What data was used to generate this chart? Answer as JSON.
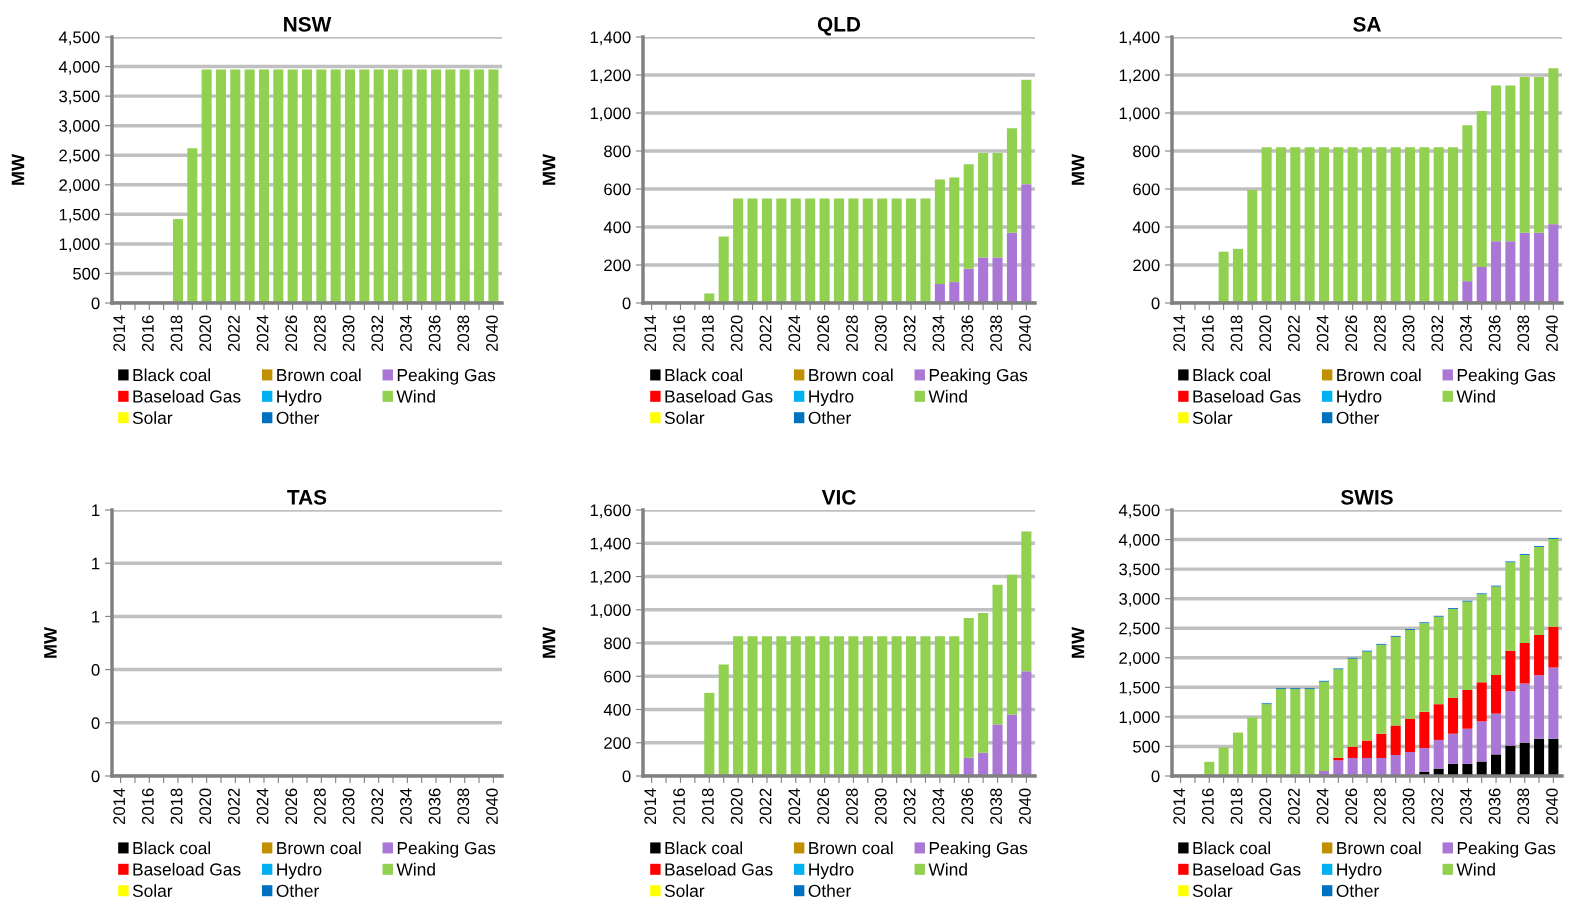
{
  "chart_data": [
    {
      "type": "bar",
      "stacked": true,
      "title": "NSW",
      "ylabel": "MW",
      "grid": "y",
      "legend": "bottom",
      "categories": [
        "2014",
        null,
        "2016",
        null,
        "2018",
        null,
        "2020",
        null,
        "2022",
        null,
        "2024",
        null,
        "2026",
        null,
        "2028",
        null,
        "2030",
        null,
        "2032",
        null,
        "2034",
        null,
        "2036",
        null,
        "2038",
        null,
        "2040"
      ],
      "ylim": [
        0,
        4500
      ],
      "yticks": [
        0,
        {
          "value": 500,
          "label": "500"
        },
        {
          "value": 1000,
          "label": "1,000"
        },
        {
          "value": 1500,
          "label": "1,500"
        },
        {
          "value": 2000,
          "label": "2,000"
        },
        {
          "value": 2500,
          "label": "2,500"
        },
        {
          "value": 3000,
          "label": "3,000"
        },
        {
          "value": 3500,
          "label": "3,500"
        },
        {
          "value": 4000,
          "label": "4,000"
        },
        {
          "value": 4500,
          "label": "4,500"
        }
      ],
      "series": [
        {
          "name": "Black coal",
          "color": "#000000",
          "values": [
            0,
            0,
            0,
            0,
            0,
            0,
            0,
            0,
            0,
            0,
            0,
            0,
            0,
            0,
            0,
            0,
            0,
            0,
            0,
            0,
            0,
            0,
            0,
            0,
            0,
            0,
            0
          ]
        },
        {
          "name": "Brown coal",
          "color": "#c09000",
          "values": [
            0,
            0,
            0,
            0,
            0,
            0,
            0,
            0,
            0,
            0,
            0,
            0,
            0,
            0,
            0,
            0,
            0,
            0,
            0,
            0,
            0,
            0,
            0,
            0,
            0,
            0,
            0
          ]
        },
        {
          "name": "Peaking Gas",
          "color": "#aa77d6",
          "values": [
            0,
            0,
            0,
            0,
            0,
            0,
            0,
            0,
            0,
            0,
            0,
            0,
            0,
            0,
            0,
            0,
            0,
            0,
            0,
            0,
            0,
            0,
            0,
            0,
            0,
            0,
            0
          ]
        },
        {
          "name": "Baseload Gas",
          "color": "#ff0000",
          "values": [
            0,
            0,
            0,
            0,
            0,
            0,
            0,
            0,
            0,
            0,
            0,
            0,
            0,
            0,
            0,
            0,
            0,
            0,
            0,
            0,
            0,
            0,
            0,
            0,
            0,
            0,
            0
          ]
        },
        {
          "name": "Hydro",
          "color": "#00b0f0",
          "values": [
            0,
            0,
            0,
            0,
            0,
            0,
            0,
            0,
            0,
            0,
            0,
            0,
            0,
            0,
            0,
            0,
            0,
            0,
            0,
            0,
            0,
            0,
            0,
            0,
            0,
            0,
            0
          ]
        },
        {
          "name": "Wind",
          "color": "#92d050",
          "values": [
            0,
            0,
            0,
            0,
            1420,
            2620,
            3950,
            3950,
            3950,
            3950,
            3950,
            3950,
            3950,
            3950,
            3950,
            3950,
            3950,
            3950,
            3950,
            3950,
            3950,
            3950,
            3950,
            3950,
            3950,
            3950,
            3950
          ]
        },
        {
          "name": "Solar",
          "color": "#ffff00",
          "values": [
            0,
            0,
            0,
            0,
            0,
            0,
            0,
            0,
            0,
            0,
            0,
            0,
            0,
            0,
            0,
            0,
            0,
            0,
            0,
            0,
            0,
            0,
            0,
            0,
            0,
            0,
            0
          ]
        },
        {
          "name": "Other",
          "color": "#0070c0",
          "values": [
            0,
            0,
            0,
            0,
            0,
            0,
            0,
            0,
            0,
            0,
            0,
            0,
            0,
            0,
            0,
            0,
            0,
            0,
            0,
            0,
            0,
            0,
            0,
            0,
            0,
            0,
            0
          ]
        }
      ]
    },
    {
      "type": "bar",
      "stacked": true,
      "title": "QLD",
      "ylabel": "MW",
      "grid": "y",
      "legend": "bottom",
      "categories": [
        "2014",
        null,
        "2016",
        null,
        "2018",
        null,
        "2020",
        null,
        "2022",
        null,
        "2024",
        null,
        "2026",
        null,
        "2028",
        null,
        "2030",
        null,
        "2032",
        null,
        "2034",
        null,
        "2036",
        null,
        "2038",
        null,
        "2040"
      ],
      "ylim": [
        0,
        1400
      ],
      "yticks": [
        0,
        200,
        400,
        600,
        800,
        {
          "value": 1000,
          "label": "1,000"
        },
        {
          "value": 1200,
          "label": "1,200"
        },
        {
          "value": 1400,
          "label": "1,400"
        }
      ],
      "series": [
        {
          "name": "Black coal",
          "color": "#000000",
          "values": [
            0,
            0,
            0,
            0,
            0,
            0,
            0,
            0,
            0,
            0,
            0,
            0,
            0,
            0,
            0,
            0,
            0,
            0,
            0,
            0,
            0,
            0,
            0,
            0,
            0,
            0,
            0
          ]
        },
        {
          "name": "Brown coal",
          "color": "#c09000",
          "values": [
            0,
            0,
            0,
            0,
            0,
            0,
            0,
            0,
            0,
            0,
            0,
            0,
            0,
            0,
            0,
            0,
            0,
            0,
            0,
            0,
            0,
            0,
            0,
            0,
            0,
            0,
            0
          ]
        },
        {
          "name": "Peaking Gas",
          "color": "#aa77d6",
          "values": [
            0,
            0,
            0,
            0,
            0,
            0,
            0,
            0,
            0,
            0,
            0,
            0,
            0,
            0,
            0,
            0,
            0,
            0,
            0,
            0,
            100,
            110,
            180,
            240,
            240,
            370,
            625
          ]
        },
        {
          "name": "Baseload Gas",
          "color": "#ff0000",
          "values": [
            0,
            0,
            0,
            0,
            0,
            0,
            0,
            0,
            0,
            0,
            0,
            0,
            0,
            0,
            0,
            0,
            0,
            0,
            0,
            0,
            0,
            0,
            0,
            0,
            0,
            0,
            0
          ]
        },
        {
          "name": "Hydro",
          "color": "#00b0f0",
          "values": [
            0,
            0,
            0,
            0,
            0,
            0,
            0,
            0,
            0,
            0,
            0,
            0,
            0,
            0,
            0,
            0,
            0,
            0,
            0,
            0,
            0,
            0,
            0,
            0,
            0,
            0,
            0
          ]
        },
        {
          "name": "Wind",
          "color": "#92d050",
          "values": [
            0,
            0,
            0,
            0,
            50,
            350,
            550,
            550,
            550,
            550,
            550,
            550,
            550,
            550,
            550,
            550,
            550,
            550,
            550,
            550,
            550,
            550,
            550,
            550,
            550,
            550,
            550
          ]
        },
        {
          "name": "Solar",
          "color": "#ffff00",
          "values": [
            0,
            0,
            0,
            0,
            0,
            0,
            0,
            0,
            0,
            0,
            0,
            0,
            0,
            0,
            0,
            0,
            0,
            0,
            0,
            0,
            0,
            0,
            0,
            0,
            0,
            0,
            0
          ]
        },
        {
          "name": "Other",
          "color": "#0070c0",
          "values": [
            0,
            0,
            0,
            0,
            0,
            0,
            0,
            0,
            0,
            0,
            0,
            0,
            0,
            0,
            0,
            0,
            0,
            0,
            0,
            0,
            0,
            0,
            0,
            0,
            0,
            0,
            0
          ]
        }
      ]
    },
    {
      "type": "bar",
      "stacked": true,
      "title": "SA",
      "ylabel": "MW",
      "grid": "y",
      "legend": "bottom",
      "categories": [
        "2014",
        null,
        "2016",
        null,
        "2018",
        null,
        "2020",
        null,
        "2022",
        null,
        "2024",
        null,
        "2026",
        null,
        "2028",
        null,
        "2030",
        null,
        "2032",
        null,
        "2034",
        null,
        "2036",
        null,
        "2038",
        null,
        "2040"
      ],
      "ylim": [
        0,
        1400
      ],
      "yticks": [
        0,
        200,
        400,
        600,
        800,
        {
          "value": 1000,
          "label": "1,000"
        },
        {
          "value": 1200,
          "label": "1,200"
        },
        {
          "value": 1400,
          "label": "1,400"
        }
      ],
      "series": [
        {
          "name": "Black coal",
          "color": "#000000",
          "values": [
            0,
            0,
            0,
            0,
            0,
            0,
            0,
            0,
            0,
            0,
            0,
            0,
            0,
            0,
            0,
            0,
            0,
            0,
            0,
            0,
            0,
            0,
            0,
            0,
            0,
            0,
            0
          ]
        },
        {
          "name": "Brown coal",
          "color": "#c09000",
          "values": [
            0,
            0,
            0,
            0,
            0,
            0,
            0,
            0,
            0,
            0,
            0,
            0,
            0,
            0,
            0,
            0,
            0,
            0,
            0,
            0,
            0,
            0,
            0,
            0,
            0,
            0,
            0
          ]
        },
        {
          "name": "Peaking Gas",
          "color": "#aa77d6",
          "values": [
            0,
            0,
            0,
            0,
            0,
            0,
            0,
            0,
            0,
            0,
            0,
            0,
            0,
            0,
            0,
            0,
            0,
            0,
            0,
            0,
            115,
            190,
            325,
            325,
            370,
            370,
            415
          ]
        },
        {
          "name": "Baseload Gas",
          "color": "#ff0000",
          "values": [
            0,
            0,
            0,
            0,
            0,
            0,
            0,
            0,
            0,
            0,
            0,
            0,
            0,
            0,
            0,
            0,
            0,
            0,
            0,
            0,
            0,
            0,
            0,
            0,
            0,
            0,
            0
          ]
        },
        {
          "name": "Hydro",
          "color": "#00b0f0",
          "values": [
            0,
            0,
            0,
            0,
            0,
            0,
            0,
            0,
            0,
            0,
            0,
            0,
            0,
            0,
            0,
            0,
            0,
            0,
            0,
            0,
            0,
            0,
            0,
            0,
            0,
            0,
            0
          ]
        },
        {
          "name": "Wind",
          "color": "#92d050",
          "values": [
            0,
            0,
            0,
            270,
            285,
            595,
            820,
            820,
            820,
            820,
            820,
            820,
            820,
            820,
            820,
            820,
            820,
            820,
            820,
            820,
            820,
            820,
            820,
            820,
            820,
            820,
            820
          ]
        },
        {
          "name": "Solar",
          "color": "#ffff00",
          "values": [
            0,
            0,
            0,
            0,
            0,
            0,
            0,
            0,
            0,
            0,
            0,
            0,
            0,
            0,
            0,
            0,
            0,
            0,
            0,
            0,
            0,
            0,
            0,
            0,
            0,
            0,
            0
          ]
        },
        {
          "name": "Other",
          "color": "#0070c0",
          "values": [
            0,
            0,
            0,
            0,
            0,
            0,
            0,
            0,
            0,
            0,
            0,
            0,
            0,
            0,
            0,
            0,
            0,
            0,
            0,
            0,
            0,
            0,
            0,
            0,
            0,
            0,
            0
          ]
        }
      ]
    },
    {
      "type": "bar",
      "stacked": true,
      "title": "TAS",
      "ylabel": "MW",
      "grid": "y",
      "legend": "bottom",
      "categories": [
        "2014",
        null,
        "2016",
        null,
        "2018",
        null,
        "2020",
        null,
        "2022",
        null,
        "2024",
        null,
        "2026",
        null,
        "2028",
        null,
        "2030",
        null,
        "2032",
        null,
        "2034",
        null,
        "2036",
        null,
        "2038",
        null,
        "2040"
      ],
      "ylim": [
        0,
        1
      ],
      "yticks": [
        0,
        {
          "value": 0.2,
          "label": "0"
        },
        {
          "value": 0.4,
          "label": "0"
        },
        {
          "value": 0.6,
          "label": "1"
        },
        {
          "value": 0.8,
          "label": "1"
        },
        1
      ],
      "series": [
        {
          "name": "Black coal",
          "color": "#000000",
          "values": [
            0,
            0,
            0,
            0,
            0,
            0,
            0,
            0,
            0,
            0,
            0,
            0,
            0,
            0,
            0,
            0,
            0,
            0,
            0,
            0,
            0,
            0,
            0,
            0,
            0,
            0,
            0
          ]
        },
        {
          "name": "Brown coal",
          "color": "#c09000",
          "values": [
            0,
            0,
            0,
            0,
            0,
            0,
            0,
            0,
            0,
            0,
            0,
            0,
            0,
            0,
            0,
            0,
            0,
            0,
            0,
            0,
            0,
            0,
            0,
            0,
            0,
            0,
            0
          ]
        },
        {
          "name": "Peaking Gas",
          "color": "#aa77d6",
          "values": [
            0,
            0,
            0,
            0,
            0,
            0,
            0,
            0,
            0,
            0,
            0,
            0,
            0,
            0,
            0,
            0,
            0,
            0,
            0,
            0,
            0,
            0,
            0,
            0,
            0,
            0,
            0
          ]
        },
        {
          "name": "Baseload Gas",
          "color": "#ff0000",
          "values": [
            0,
            0,
            0,
            0,
            0,
            0,
            0,
            0,
            0,
            0,
            0,
            0,
            0,
            0,
            0,
            0,
            0,
            0,
            0,
            0,
            0,
            0,
            0,
            0,
            0,
            0,
            0
          ]
        },
        {
          "name": "Hydro",
          "color": "#00b0f0",
          "values": [
            0,
            0,
            0,
            0,
            0,
            0,
            0,
            0,
            0,
            0,
            0,
            0,
            0,
            0,
            0,
            0,
            0,
            0,
            0,
            0,
            0,
            0,
            0,
            0,
            0,
            0,
            0
          ]
        },
        {
          "name": "Wind",
          "color": "#92d050",
          "values": [
            0,
            0,
            0,
            0,
            0,
            0,
            0,
            0,
            0,
            0,
            0,
            0,
            0,
            0,
            0,
            0,
            0,
            0,
            0,
            0,
            0,
            0,
            0,
            0,
            0,
            0,
            0
          ]
        },
        {
          "name": "Solar",
          "color": "#ffff00",
          "values": [
            0,
            0,
            0,
            0,
            0,
            0,
            0,
            0,
            0,
            0,
            0,
            0,
            0,
            0,
            0,
            0,
            0,
            0,
            0,
            0,
            0,
            0,
            0,
            0,
            0,
            0,
            0
          ]
        },
        {
          "name": "Other",
          "color": "#0070c0",
          "values": [
            0,
            0,
            0,
            0,
            0,
            0,
            0,
            0,
            0,
            0,
            0,
            0,
            0,
            0,
            0,
            0,
            0,
            0,
            0,
            0,
            0,
            0,
            0,
            0,
            0,
            0,
            0
          ]
        }
      ]
    },
    {
      "type": "bar",
      "stacked": true,
      "title": "VIC",
      "ylabel": "MW",
      "grid": "y",
      "legend": "bottom",
      "categories": [
        "2014",
        null,
        "2016",
        null,
        "2018",
        null,
        "2020",
        null,
        "2022",
        null,
        "2024",
        null,
        "2026",
        null,
        "2028",
        null,
        "2030",
        null,
        "2032",
        null,
        "2034",
        null,
        "2036",
        null,
        "2038",
        null,
        "2040"
      ],
      "ylim": [
        0,
        1600
      ],
      "yticks": [
        0,
        200,
        400,
        600,
        800,
        {
          "value": 1000,
          "label": "1,000"
        },
        {
          "value": 1200,
          "label": "1,200"
        },
        {
          "value": 1400,
          "label": "1,400"
        },
        {
          "value": 1600,
          "label": "1,600"
        }
      ],
      "series": [
        {
          "name": "Black coal",
          "color": "#000000",
          "values": [
            0,
            0,
            0,
            0,
            0,
            0,
            0,
            0,
            0,
            0,
            0,
            0,
            0,
            0,
            0,
            0,
            0,
            0,
            0,
            0,
            0,
            0,
            0,
            0,
            0,
            0,
            0
          ]
        },
        {
          "name": "Brown coal",
          "color": "#c09000",
          "values": [
            0,
            0,
            0,
            0,
            0,
            0,
            0,
            0,
            0,
            0,
            0,
            0,
            0,
            0,
            0,
            0,
            0,
            0,
            0,
            0,
            0,
            0,
            0,
            0,
            0,
            0,
            0
          ]
        },
        {
          "name": "Peaking Gas",
          "color": "#aa77d6",
          "values": [
            0,
            0,
            0,
            0,
            0,
            0,
            0,
            0,
            0,
            0,
            0,
            0,
            0,
            0,
            0,
            0,
            0,
            0,
            0,
            0,
            0,
            0,
            110,
            140,
            310,
            370,
            630
          ]
        },
        {
          "name": "Baseload Gas",
          "color": "#ff0000",
          "values": [
            0,
            0,
            0,
            0,
            0,
            0,
            0,
            0,
            0,
            0,
            0,
            0,
            0,
            0,
            0,
            0,
            0,
            0,
            0,
            0,
            0,
            0,
            0,
            0,
            0,
            0,
            0
          ]
        },
        {
          "name": "Hydro",
          "color": "#00b0f0",
          "values": [
            0,
            0,
            0,
            0,
            0,
            0,
            0,
            0,
            0,
            0,
            0,
            0,
            0,
            0,
            0,
            0,
            0,
            0,
            0,
            0,
            0,
            0,
            0,
            0,
            0,
            0,
            0
          ]
        },
        {
          "name": "Wind",
          "color": "#92d050",
          "values": [
            0,
            0,
            0,
            0,
            500,
            670,
            840,
            840,
            840,
            840,
            840,
            840,
            840,
            840,
            840,
            840,
            840,
            840,
            840,
            840,
            840,
            840,
            840,
            840,
            840,
            840,
            840
          ]
        },
        {
          "name": "Solar",
          "color": "#ffff00",
          "values": [
            0,
            0,
            0,
            0,
            0,
            0,
            0,
            0,
            0,
            0,
            0,
            0,
            0,
            0,
            0,
            0,
            0,
            0,
            0,
            0,
            0,
            0,
            0,
            0,
            0,
            0,
            0
          ]
        },
        {
          "name": "Other",
          "color": "#0070c0",
          "values": [
            0,
            0,
            0,
            0,
            0,
            0,
            0,
            0,
            0,
            0,
            0,
            0,
            0,
            0,
            0,
            0,
            0,
            0,
            0,
            0,
            0,
            0,
            0,
            0,
            0,
            0,
            0
          ]
        }
      ]
    },
    {
      "type": "bar",
      "stacked": true,
      "title": "SWIS",
      "ylabel": "MW",
      "grid": "y",
      "legend": "bottom",
      "categories": [
        "2014",
        null,
        "2016",
        null,
        "2018",
        null,
        "2020",
        null,
        "2022",
        null,
        "2024",
        null,
        "2026",
        null,
        "2028",
        null,
        "2030",
        null,
        "2032",
        null,
        "2034",
        null,
        "2036",
        null,
        "2038",
        null,
        "2040"
      ],
      "ylim": [
        0,
        4500
      ],
      "yticks": [
        0,
        {
          "value": 500,
          "label": "500"
        },
        {
          "value": 1000,
          "label": "1,000"
        },
        {
          "value": 1500,
          "label": "1,500"
        },
        {
          "value": 2000,
          "label": "2,000"
        },
        {
          "value": 2500,
          "label": "2,500"
        },
        {
          "value": 3000,
          "label": "3,000"
        },
        {
          "value": 3500,
          "label": "3,500"
        },
        {
          "value": 4000,
          "label": "4,000"
        },
        {
          "value": 4500,
          "label": "4,500"
        }
      ],
      "series": [
        {
          "name": "Black coal",
          "color": "#000000",
          "values": [
            0,
            0,
            0,
            0,
            0,
            0,
            0,
            0,
            0,
            0,
            0,
            0,
            0,
            0,
            0,
            0,
            0,
            70,
            125,
            205,
            205,
            245,
            365,
            515,
            565,
            630,
            630
          ]
        },
        {
          "name": "Brown coal",
          "color": "#c09000",
          "values": [
            0,
            0,
            0,
            0,
            0,
            0,
            0,
            0,
            0,
            0,
            0,
            0,
            0,
            0,
            0,
            0,
            0,
            0,
            0,
            0,
            0,
            0,
            0,
            0,
            0,
            0,
            0
          ]
        },
        {
          "name": "Peaking Gas",
          "color": "#aa77d6",
          "values": [
            0,
            0,
            0,
            0,
            0,
            0,
            0,
            0,
            0,
            0,
            85,
            265,
            305,
            305,
            305,
            355,
            405,
            405,
            485,
            510,
            595,
            680,
            690,
            920,
            1000,
            1075,
            1205
          ]
        },
        {
          "name": "Baseload Gas",
          "color": "#ff0000",
          "values": [
            0,
            0,
            0,
            0,
            0,
            0,
            0,
            0,
            0,
            0,
            0,
            45,
            190,
            295,
            410,
            500,
            565,
            610,
            605,
            610,
            655,
            660,
            655,
            685,
            685,
            680,
            690
          ]
        },
        {
          "name": "Hydro",
          "color": "#00b0f0",
          "values": [
            0,
            0,
            0,
            0,
            0,
            0,
            0,
            0,
            0,
            0,
            0,
            0,
            0,
            0,
            0,
            0,
            0,
            0,
            0,
            0,
            0,
            0,
            0,
            0,
            0,
            0,
            0
          ]
        },
        {
          "name": "Wind",
          "color": "#92d050",
          "values": [
            0,
            0,
            240,
            480,
            735,
            990,
            1215,
            1470,
            1470,
            1470,
            1510,
            1495,
            1490,
            1505,
            1505,
            1500,
            1500,
            1500,
            1480,
            1500,
            1495,
            1490,
            1495,
            1495,
            1490,
            1490,
            1485
          ]
        },
        {
          "name": "Solar",
          "color": "#ffff00",
          "values": [
            0,
            0,
            0,
            0,
            0,
            0,
            0,
            0,
            0,
            0,
            0,
            0,
            0,
            0,
            0,
            0,
            0,
            0,
            0,
            0,
            0,
            0,
            0,
            0,
            0,
            0,
            0
          ]
        },
        {
          "name": "Other",
          "color": "#0070c0",
          "values": [
            0,
            0,
            0,
            0,
            0,
            0,
            15,
            15,
            15,
            15,
            15,
            15,
            15,
            15,
            15,
            15,
            15,
            15,
            15,
            15,
            15,
            15,
            15,
            15,
            15,
            15,
            15
          ]
        }
      ]
    }
  ]
}
